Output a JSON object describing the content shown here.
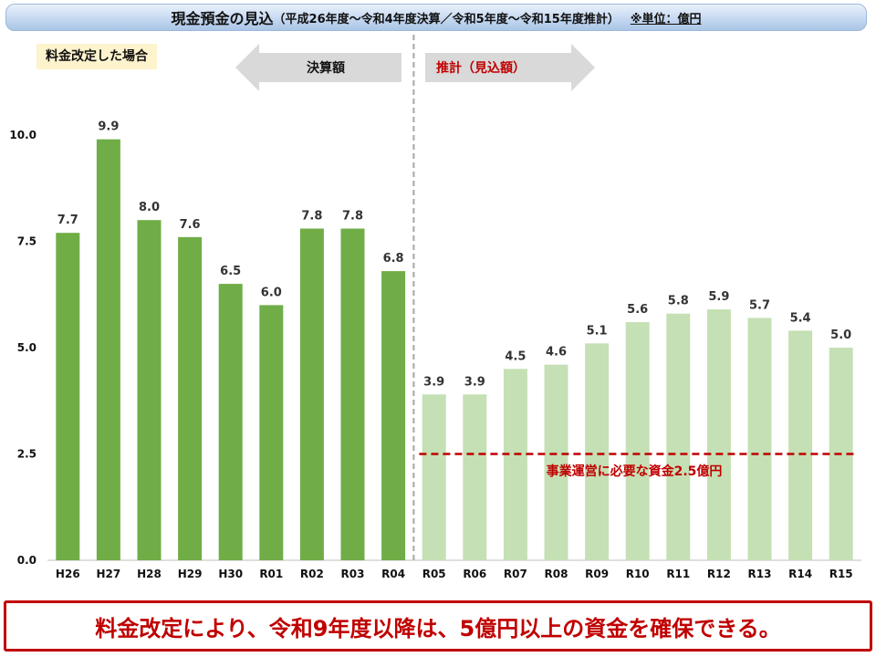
{
  "title": {
    "main": "現金預金の見込",
    "sub": "（平成26年度～令和4年度決算／令和5年度～令和15年度推計）",
    "unit": "※単位：億円"
  },
  "scenario_label": "料金改定した場合",
  "arrow_actual": "決算額",
  "arrow_projected": "推計（見込額）",
  "threshold_label": "事業運営に必要な資金2.5億円",
  "conclusion": "料金改定により、令和9年度以降は、5億円以上の資金を確保できる。",
  "colors": {
    "actual_bar": "#70ad47",
    "projected_bar": "#c5e0b4",
    "threshold": "#c00000",
    "divider": "#a6a6a6",
    "arrow": "#d9d9d9"
  },
  "chart_data": {
    "type": "bar",
    "categories": [
      "H26",
      "H27",
      "H28",
      "H29",
      "H30",
      "R01",
      "R02",
      "R03",
      "R04",
      "R05",
      "R06",
      "R07",
      "R08",
      "R09",
      "R10",
      "R11",
      "R12",
      "R13",
      "R14",
      "R15"
    ],
    "values": [
      7.7,
      9.9,
      8.0,
      7.6,
      6.5,
      6.0,
      7.8,
      7.8,
      6.8,
      3.9,
      3.9,
      4.5,
      4.6,
      5.1,
      5.6,
      5.8,
      5.9,
      5.7,
      5.4,
      5.0
    ],
    "groups": [
      {
        "name": "決算額",
        "from": "H26",
        "to": "R04"
      },
      {
        "name": "推計（見込額）",
        "from": "R05",
        "to": "R15"
      }
    ],
    "ylim": [
      0,
      10
    ],
    "yticks": [
      "0.0",
      "2.5",
      "5.0",
      "7.5",
      "10.0"
    ],
    "threshold": 2.5,
    "xlabel": "",
    "ylabel": "",
    "grid": false,
    "legend": "none"
  }
}
